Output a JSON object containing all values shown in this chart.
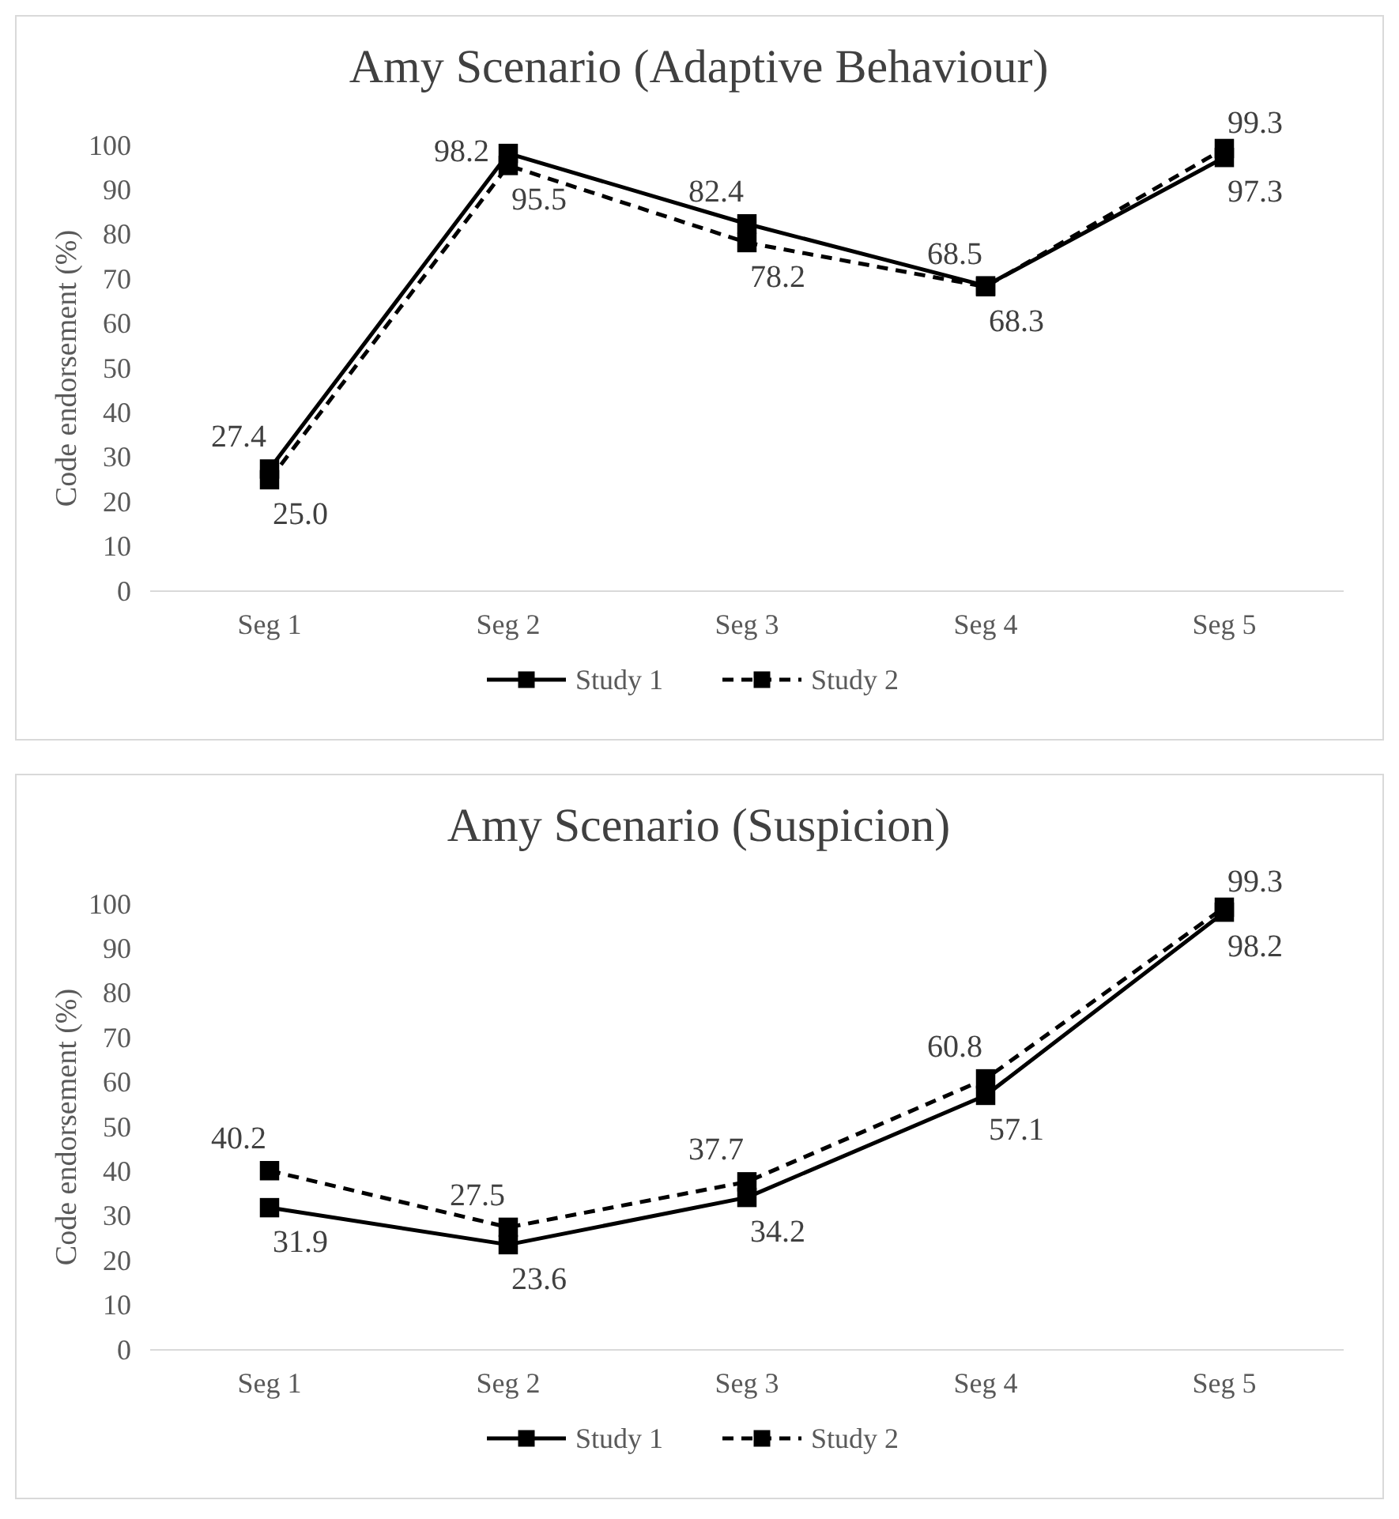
{
  "chart_data": [
    {
      "type": "line",
      "title": "Amy Scenario (Adaptive Behaviour)",
      "ylabel": "Code endorsement (%)",
      "categories": [
        "Seg 1",
        "Seg 2",
        "Seg 3",
        "Seg 4",
        "Seg 5"
      ],
      "ylim": [
        0,
        100
      ],
      "yticks": [
        0,
        10,
        20,
        30,
        40,
        50,
        60,
        70,
        80,
        90,
        100
      ],
      "grid": false,
      "legend": "bottom",
      "marker": "square",
      "series": [
        {
          "name": "Study 1",
          "color": "#000000",
          "line_style": "solid",
          "values": [
            27.4,
            98.2,
            82.4,
            68.5,
            97.3
          ],
          "value_labels": [
            "27.4",
            "98.2",
            "82.4",
            "68.5",
            "97.3"
          ]
        },
        {
          "name": "Study 2",
          "color": "#000000",
          "line_style": "dashed",
          "values": [
            25.0,
            95.5,
            78.2,
            68.3,
            99.3
          ],
          "value_labels": [
            "25.0",
            "95.5",
            "78.2",
            "68.3",
            "99.3"
          ]
        }
      ]
    },
    {
      "type": "line",
      "title": "Amy Scenario (Suspicion)",
      "ylabel": "Code endorsement (%)",
      "categories": [
        "Seg 1",
        "Seg 2",
        "Seg 3",
        "Seg 4",
        "Seg 5"
      ],
      "ylim": [
        0,
        100
      ],
      "yticks": [
        0,
        10,
        20,
        30,
        40,
        50,
        60,
        70,
        80,
        90,
        100
      ],
      "grid": false,
      "legend": "bottom",
      "marker": "square",
      "series": [
        {
          "name": "Study 1",
          "color": "#000000",
          "line_style": "solid",
          "values": [
            31.9,
            23.6,
            34.2,
            57.1,
            98.2
          ],
          "value_labels": [
            "31.9",
            "23.6",
            "34.2",
            "57.1",
            "98.2"
          ]
        },
        {
          "name": "Study 2",
          "color": "#000000",
          "line_style": "dashed",
          "values": [
            40.2,
            27.5,
            37.7,
            60.8,
            99.3
          ],
          "value_labels": [
            "40.2",
            "27.5",
            "37.7",
            "60.8",
            "99.3"
          ]
        }
      ]
    }
  ]
}
